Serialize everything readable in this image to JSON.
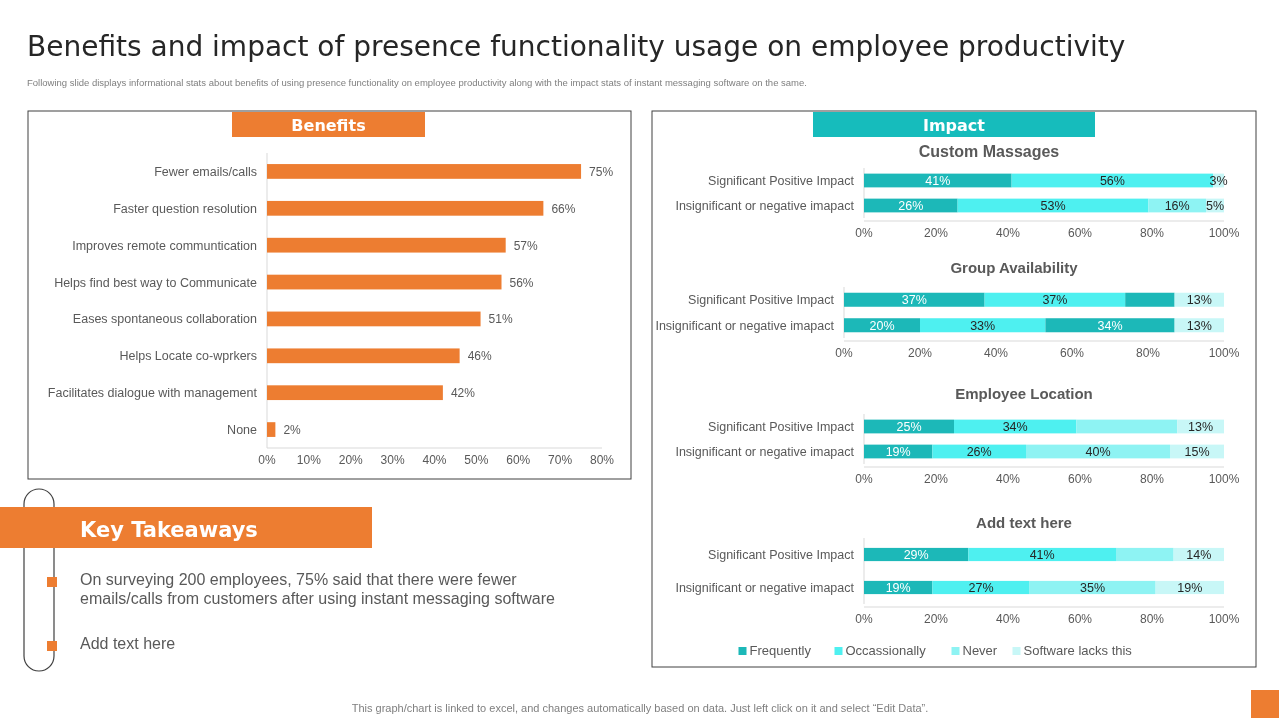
{
  "chart_data": [
    {
      "type": "other",
      "title": "Benefits and impact of presence functionality usage on employee productivity",
      "subtitle": "Following slide displays informational stats about benefits of using presence functionality on employee productivity along with the impact  stats of instant messaging software on the same.",
      "annotations": [
        "This graph/chart is linked to excel,  and changes automatically based on data. Just left click on it and select “Edit Data”."
      ]
    },
    {
      "type": "bar",
      "orientation": "horizontal",
      "title": "Benefits",
      "categories": [
        "Fewer emails/calls",
        "Faster question resolution",
        "Improves remote communtication",
        "Helps find best way to Communicate",
        "Eases spontaneous collaboration",
        "Helps Locate co-wprkers",
        "Facilitates dialogue with management",
        "None"
      ],
      "values": [
        75,
        66,
        57,
        56,
        51,
        46,
        42,
        2
      ],
      "value_labels": [
        "75%",
        "66%",
        "57%",
        "56%",
        "51%",
        "46%",
        "42%",
        "2%"
      ],
      "color": "#ed7d31",
      "xlim": [
        0,
        80
      ],
      "xticks": [
        {
          "value": 0,
          "label": "0%"
        },
        {
          "value": 10,
          "label": "10%"
        },
        {
          "value": 20,
          "label": "20%"
        },
        {
          "value": 30,
          "label": "30%"
        },
        {
          "value": 40,
          "label": "40%"
        },
        {
          "value": 50,
          "label": "50%"
        },
        {
          "value": 60,
          "label": "60%"
        },
        {
          "value": 70,
          "label": "70%"
        },
        {
          "value": 80,
          "label": "80%"
        }
      ]
    },
    {
      "type": "bar",
      "orientation": "horizontal",
      "stacked": true,
      "title": "Impact",
      "subtitle": "Custom Massages",
      "categories": [
        "Significant Positive Impact",
        "Insignificant or negative imapact"
      ],
      "xlim": [
        0,
        100
      ],
      "xticks": [
        {
          "value": 0,
          "label": "0%"
        },
        {
          "value": 20,
          "label": "20%"
        },
        {
          "value": 40,
          "label": "40%"
        },
        {
          "value": 60,
          "label": "60%"
        },
        {
          "value": 80,
          "label": "80%"
        },
        {
          "value": 100,
          "label": "100%"
        }
      ],
      "series": [
        {
          "color": "#1cb8b8",
          "values": [
            41,
            26
          ],
          "value_labels": [
            "41%",
            "26%"
          ]
        },
        {
          "color": "#4ef0f0",
          "values": [
            56,
            53
          ],
          "value_labels": [
            "56%",
            "53%"
          ]
        },
        {
          "color": "#8ef3f3",
          "values": [
            null,
            16
          ],
          "value_labels": [
            null,
            "16%"
          ]
        },
        {
          "color": "#c8f7f7",
          "values": [
            3,
            5
          ],
          "value_labels": [
            "3%",
            "5%"
          ]
        }
      ]
    },
    {
      "type": "bar",
      "orientation": "horizontal",
      "stacked": true,
      "title": "Group Availability",
      "categories": [
        "Significant Positive Impact",
        "Insignificant or negative imapact"
      ],
      "xlim": [
        0,
        100
      ],
      "xticks": [
        {
          "value": 0,
          "label": "0%"
        },
        {
          "value": 20,
          "label": "20%"
        },
        {
          "value": 40,
          "label": "40%"
        },
        {
          "value": 60,
          "label": "60%"
        },
        {
          "value": 80,
          "label": "80%"
        },
        {
          "value": 100,
          "label": "100%"
        }
      ],
      "series": [
        {
          "color": "#1cb8b8",
          "values": [
            37,
            20
          ],
          "value_labels": [
            "37%",
            "20%"
          ]
        },
        {
          "color": "#4ef0f0",
          "values": [
            37,
            33
          ],
          "value_labels": [
            "37%",
            "33%"
          ]
        },
        {
          "color": "#1cb8b8",
          "values": [
            13,
            34
          ],
          "value_labels": [
            null,
            "34%"
          ]
        },
        {
          "color": "#c8f7f7",
          "values": [
            13,
            13
          ],
          "value_labels": [
            "13%",
            "13%"
          ]
        }
      ]
    },
    {
      "type": "bar",
      "orientation": "horizontal",
      "stacked": true,
      "title": "Employee Location",
      "categories": [
        "Significant Positive Impact",
        "Insignificant or negative imapact"
      ],
      "xlim": [
        0,
        100
      ],
      "xticks": [
        {
          "value": 0,
          "label": "0%"
        },
        {
          "value": 20,
          "label": "20%"
        },
        {
          "value": 40,
          "label": "40%"
        },
        {
          "value": 60,
          "label": "60%"
        },
        {
          "value": 80,
          "label": "80%"
        },
        {
          "value": 100,
          "label": "100%"
        }
      ],
      "series": [
        {
          "color": "#1cb8b8",
          "values": [
            25,
            19
          ],
          "value_labels": [
            "25%",
            "19%"
          ]
        },
        {
          "color": "#4ef0f0",
          "values": [
            34,
            26
          ],
          "value_labels": [
            "34%",
            "26%"
          ]
        },
        {
          "color": "#8ef3f3",
          "values": [
            28,
            40
          ],
          "value_labels": [
            null,
            "40%"
          ]
        },
        {
          "color": "#c8f7f7",
          "values": [
            13,
            15
          ],
          "value_labels": [
            "13%",
            "15%"
          ]
        }
      ]
    },
    {
      "type": "bar",
      "orientation": "horizontal",
      "stacked": true,
      "title": "Add text here",
      "categories": [
        "Significant Positive Impact",
        "Insignificant or negative imapact"
      ],
      "xlim": [
        0,
        100
      ],
      "xticks": [
        {
          "value": 0,
          "label": "0%"
        },
        {
          "value": 20,
          "label": "20%"
        },
        {
          "value": 40,
          "label": "40%"
        },
        {
          "value": 60,
          "label": "60%"
        },
        {
          "value": 80,
          "label": "80%"
        },
        {
          "value": 100,
          "label": "100%"
        }
      ],
      "legend": "bottom",
      "series": [
        {
          "name": "Frequently",
          "color": "#1cb8b8",
          "values": [
            29,
            19
          ],
          "value_labels": [
            "29%",
            "19%"
          ]
        },
        {
          "name": "Occassionally",
          "color": "#4ef0f0",
          "values": [
            41,
            27
          ],
          "value_labels": [
            "41%",
            "27%"
          ]
        },
        {
          "name": "Never",
          "color": "#8ef3f3",
          "values": [
            16,
            35
          ],
          "value_labels": [
            null,
            "35%"
          ]
        },
        {
          "name": "Software lacks this",
          "color": "#c8f7f7",
          "values": [
            14,
            19
          ],
          "value_labels": [
            "14%",
            "19%"
          ]
        }
      ]
    },
    {
      "type": "other",
      "title": "Key Takeaways",
      "annotations": [
        "On surveying 200 employees, 75% said that there were fewer emails/calls from customers after using instant messaging software",
        "Add text here"
      ]
    }
  ]
}
